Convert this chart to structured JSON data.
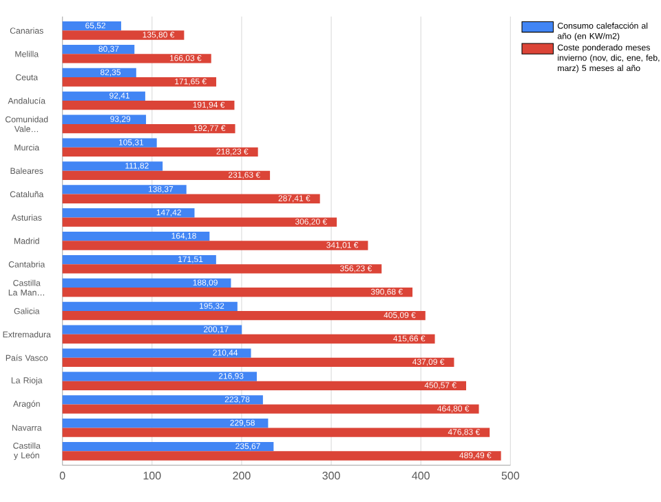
{
  "chart_data": {
    "type": "bar",
    "orientation": "horizontal",
    "categories": [
      "Canarias",
      "Melilla",
      "Ceuta",
      "Andalucía",
      "Comunidad Vale…",
      "Murcia",
      "Baleares",
      "Cataluña",
      "Asturias",
      "Madrid",
      "Cantabria",
      "Castilla La Man…",
      "Galicia",
      "Extremadura",
      "País Vasco",
      "La Rioja",
      "Aragón",
      "Navarra",
      "Castilla y León"
    ],
    "series": [
      {
        "name": "Consumo calefacción al año (en KW/m2)",
        "color": "#4285f4",
        "values": [
          65.52,
          80.37,
          82.35,
          92.41,
          93.29,
          105.31,
          111.82,
          138.37,
          147.42,
          164.18,
          171.51,
          188.09,
          195.32,
          200.17,
          210.44,
          216.93,
          223.78,
          229.58,
          235.67
        ],
        "value_labels": [
          "65,52",
          "80,37",
          "82,35",
          "92,41",
          "93,29",
          "105,31",
          "111,82",
          "138,37",
          "147,42",
          "164,18",
          "171,51",
          "188,09",
          "195,32",
          "200,17",
          "210,44",
          "216,93",
          "223,78",
          "229,58",
          "235,67"
        ]
      },
      {
        "name": "Coste ponderado meses invierno (nov, dic, ene, feb, marz) 5 meses al año",
        "color": "#db4437",
        "values": [
          135.8,
          166.03,
          171.65,
          191.94,
          192.77,
          218.23,
          231.63,
          287.41,
          306.2,
          341.01,
          356.23,
          390.68,
          405.09,
          415.66,
          437.09,
          450.57,
          464.8,
          476.83,
          489.49
        ],
        "value_labels": [
          "135,80 €",
          "166,03 €",
          "171,65 €",
          "191,94 €",
          "192,77 €",
          "218,23 €",
          "231,63 €",
          "287,41 €",
          "306,20 €",
          "341,01 €",
          "356,23 €",
          "390,68 €",
          "405,09 €",
          "415,66 €",
          "437,09 €",
          "450,57 €",
          "464,80 €",
          "476,83 €",
          "489,49 €"
        ]
      }
    ],
    "xlim": [
      0,
      500
    ],
    "xticks": [
      0,
      100,
      200,
      300,
      400,
      500
    ],
    "grid": "x",
    "legend": "right"
  }
}
